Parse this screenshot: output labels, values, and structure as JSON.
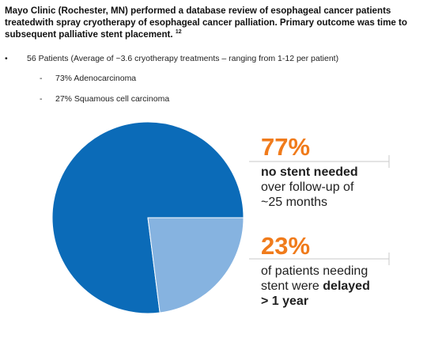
{
  "intro": {
    "text": "Mayo Clinic (Rochester, MN) performed a database review of esophageal cancer patients treatedwith spray cryotherapy of esophageal cancer palliation. Primary outcome was time to subsequent palliative stent placement.",
    "superscript": "12"
  },
  "bullets": {
    "main_mark": "•",
    "main": "56 Patients (Average of ~3.6 cryotherapy treatments – ranging from 1-12 per patient)",
    "sub_mark": "-",
    "sub": [
      "73% Adenocarcinoma",
      "27% Squamous cell carcinoma"
    ]
  },
  "chart_data": {
    "type": "pie",
    "values": [
      77,
      23
    ],
    "unit": "%",
    "colors": [
      "#0b6bb8",
      "#86b3e0"
    ],
    "callouts": [
      {
        "value_label": "77%",
        "line1_bold": "no stent needed",
        "line2": "over follow-up of",
        "line3": "~25 months"
      },
      {
        "value_label": "23%",
        "line1": "of patients needing",
        "line2_prefix": "stent were",
        "line2_bold": "delayed",
        "line3_bold": "> 1 year"
      }
    ]
  }
}
